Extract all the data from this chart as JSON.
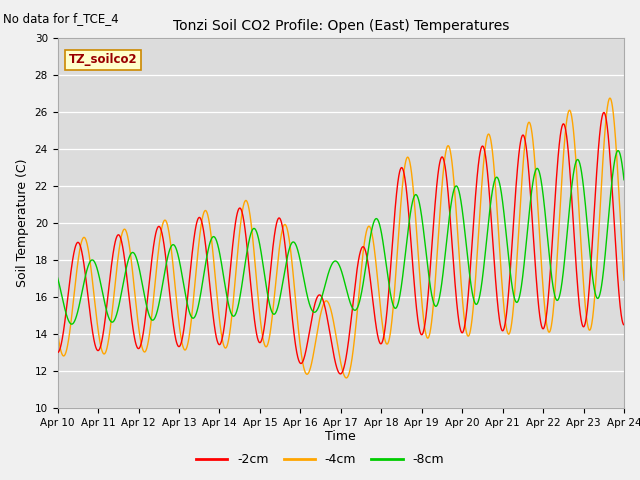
{
  "title": "Tonzi Soil CO2 Profile: Open (East) Temperatures",
  "subtitle": "No data for f_TCE_4",
  "ylabel": "Soil Temperature (C)",
  "xlabel": "Time",
  "annotation": "TZ_soilco2",
  "ylim": [
    10,
    30
  ],
  "xlim": [
    0,
    14
  ],
  "xtick_labels": [
    "Apr 10",
    "Apr 11",
    "Apr 12",
    "Apr 13",
    "Apr 14",
    "Apr 15",
    "Apr 16",
    "Apr 17",
    "Apr 18",
    "Apr 19",
    "Apr 20",
    "Apr 21",
    "Apr 22",
    "Apr 23",
    "Apr 24"
  ],
  "ytick_values": [
    10,
    12,
    14,
    16,
    18,
    20,
    22,
    24,
    26,
    28,
    30
  ],
  "color_2cm": "#FF0000",
  "color_4cm": "#FFA500",
  "color_8cm": "#00CC00",
  "legend_labels": [
    "-2cm",
    "-4cm",
    "-8cm"
  ],
  "plot_bg": "#DCDCDC",
  "fig_bg": "#F0F0F0",
  "line_width": 1.0
}
